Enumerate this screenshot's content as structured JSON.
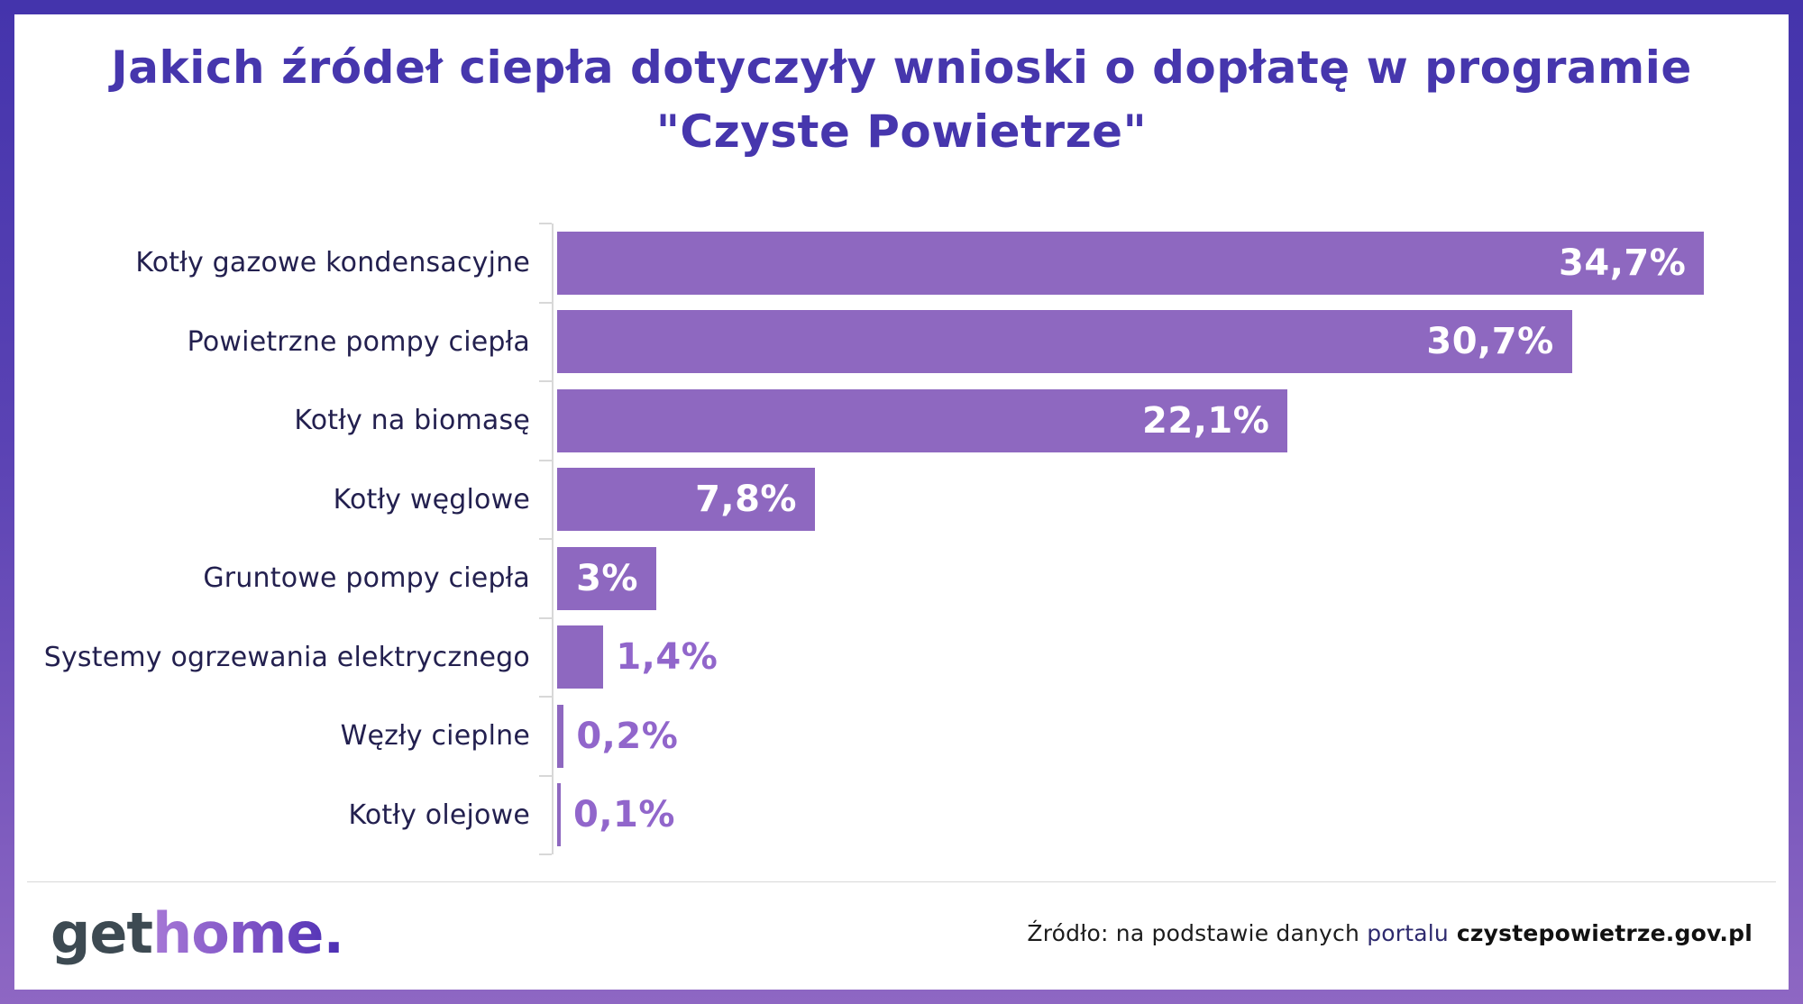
{
  "title": "Jakich źródeł ciepła dotyczyły wnioski o dopłatę w programie \"Czyste Powietrze\"",
  "chart_data": {
    "type": "bar",
    "orientation": "horizontal",
    "title": "Jakich źródeł ciepła dotyczyły wnioski o dopłatę w programie \"Czyste Powietrze\"",
    "categories": [
      "Kotły gazowe kondensacyjne",
      "Powietrzne pompy ciepła",
      "Kotły na biomasę",
      "Kotły węglowe",
      "Gruntowe pompy ciepła",
      "Systemy ogrzewania elektrycznego",
      "Węzły cieplne",
      "Kotły olejowe"
    ],
    "values": [
      34.7,
      30.7,
      22.1,
      7.8,
      3,
      1.4,
      0.2,
      0.1
    ],
    "value_labels": [
      "34,7%",
      "30,7%",
      "22,1%",
      "7,8%",
      "3%",
      "1,4%",
      "0,2%",
      "0,1%"
    ],
    "value_label_placement": [
      "inside",
      "inside",
      "inside",
      "inside",
      "inside",
      "outside",
      "outside",
      "outside"
    ],
    "xlabel": "",
    "ylabel": "",
    "xlim": [
      0,
      36
    ],
    "grid": false,
    "legend": false,
    "bar_color": "#8e68c0",
    "value_color_inside": "#ffffff",
    "value_color_outside": "#9166cb",
    "category_label_color": "#23204f",
    "axis_color": "#d8d8d8"
  },
  "colors": {
    "title": "#4636ad",
    "frame_border_top": "#4434ac",
    "frame_border_bottom": "#8e67c3",
    "background": "#ffffff"
  },
  "footer": {
    "logo": {
      "get": "get",
      "home": "home."
    },
    "source": {
      "prefix": "Źródło: na podstawie danych ",
      "link": "portalu",
      "domain": " czystepowietrze.gov.pl"
    }
  }
}
